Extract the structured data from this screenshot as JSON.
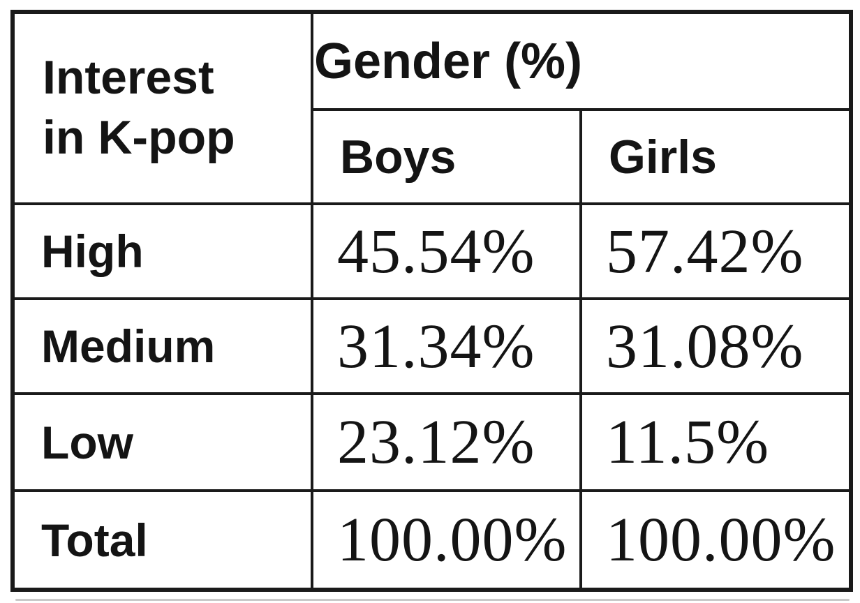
{
  "table": {
    "row_header": "Interest\nin K-pop",
    "col_group_header": "Gender (%)",
    "columns": [
      "Boys",
      "Girls"
    ],
    "rows": [
      {
        "label": "High",
        "boys": "45.54%",
        "girls": "57.42%"
      },
      {
        "label": "Medium",
        "boys": "31.34%",
        "girls": "31.08%"
      },
      {
        "label": "Low",
        "boys": "23.12%",
        "girls": "11.5%"
      }
    ],
    "total_row": {
      "label": "Total",
      "boys": "100.00%",
      "girls": "100.00%"
    }
  },
  "colors": {
    "border": "#1a1a1a",
    "background": "#ffffff",
    "text": "#141414",
    "artifact_line": "#c9c9c9"
  },
  "chart_data": {
    "type": "table",
    "title": "",
    "row_header": "Interest in K-pop",
    "column_group": {
      "label": "Gender (%)",
      "spans": [
        "Boys",
        "Girls"
      ]
    },
    "columns": [
      "Interest in K-pop",
      "Boys",
      "Girls"
    ],
    "rows": [
      [
        "High",
        45.54,
        57.42
      ],
      [
        "Medium",
        31.34,
        31.08
      ],
      [
        "Low",
        23.12,
        11.5
      ],
      [
        "Total",
        100.0,
        100.0
      ]
    ],
    "units": "percent"
  }
}
